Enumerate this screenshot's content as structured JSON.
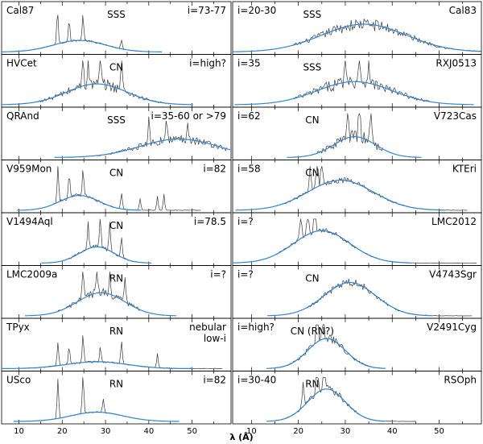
{
  "figure": {
    "xlabel": "λ (Å)",
    "colors": {
      "observed": "#3a3a3a",
      "model": "#2f86d0",
      "frame": "#000000"
    }
  },
  "chart_data": {
    "type": "line",
    "xlabel": "λ (Å)",
    "xlim": [
      6,
      59
    ],
    "xticks": [
      10,
      20,
      30,
      40,
      50
    ],
    "grid": false,
    "panels": [
      {
        "name": "Cal87",
        "class": "SSS",
        "incl": "i=73-77",
        "col": 0,
        "row": 0,
        "model": {
          "center": 24,
          "width": 6,
          "amp": 0.25
        },
        "obs_range": [
          9,
          38
        ],
        "lines": [
          [
            18.9,
            0.72
          ],
          [
            21.6,
            0.45
          ],
          [
            24.8,
            0.55
          ],
          [
            33.7,
            0.2
          ]
        ],
        "noise": 0.08
      },
      {
        "name": "Cal83",
        "class": "SSS",
        "incl": "i=20-30",
        "col": 1,
        "row": 0,
        "model": {
          "center": 34,
          "width": 9,
          "amp": 0.6
        },
        "obs_range": [
          19,
          59
        ],
        "lines": [],
        "noise": 0.22
      },
      {
        "name": "HVCet",
        "class": "CN",
        "incl": "i=high?",
        "col": 0,
        "row": 1,
        "model": {
          "center": 28,
          "width": 7,
          "amp": 0.45
        },
        "obs_range": [
          14,
          44
        ],
        "lines": [
          [
            24.8,
            0.8
          ],
          [
            28.8,
            0.6
          ],
          [
            33.7,
            0.7
          ],
          [
            26.0,
            0.5
          ]
        ],
        "noise": 0.3
      },
      {
        "name": "RXJ0513",
        "class": "SSS",
        "incl": "i=35",
        "col": 1,
        "row": 1,
        "model": {
          "center": 32,
          "width": 8,
          "amp": 0.5
        },
        "obs_range": [
          19,
          48
        ],
        "lines": [
          [
            30.0,
            0.85
          ],
          [
            33.0,
            0.75
          ],
          [
            35.0,
            0.6
          ]
        ],
        "noise": 0.3
      },
      {
        "name": "QRAnd",
        "class": "SSS",
        "incl": "i=35-60 or >79",
        "col": 0,
        "row": 2,
        "model": {
          "center": 47,
          "width": 9,
          "amp": 0.4
        },
        "obs_range": [
          28,
          58
        ],
        "lines": [
          [
            40.0,
            0.55
          ],
          [
            44.0,
            0.5
          ],
          [
            49.0,
            0.45
          ]
        ],
        "noise": 0.25
      },
      {
        "name": "V723Cas",
        "class": "CN",
        "incl": "i=62",
        "col": 1,
        "row": 2,
        "model": {
          "center": 32,
          "width": 4.5,
          "amp": 0.45
        },
        "obs_range": [
          24,
          38
        ],
        "lines": [
          [
            30.5,
            0.7
          ],
          [
            33.0,
            0.85
          ],
          [
            35.5,
            0.8
          ]
        ],
        "noise": 0.35
      },
      {
        "name": "V959Mon",
        "class": "CN",
        "incl": "i=82",
        "col": 0,
        "row": 3,
        "model": {
          "center": 24,
          "width": 4.5,
          "amp": 0.32
        },
        "obs_range": [
          18,
          52
        ],
        "lines": [
          [
            19.0,
            0.8
          ],
          [
            21.6,
            0.5
          ],
          [
            24.8,
            0.6
          ],
          [
            33.7,
            0.35
          ],
          [
            38.0,
            0.25
          ],
          [
            42.0,
            0.3
          ],
          [
            43.5,
            0.35
          ]
        ],
        "noise": 0.15
      },
      {
        "name": "KTEri",
        "class": "CN",
        "incl": "i=58",
        "col": 1,
        "row": 3,
        "model": {
          "center": 29,
          "width": 7,
          "amp": 0.65
        },
        "obs_range": [
          16,
          56
        ],
        "lines": [
          [
            22.5,
            0.6
          ],
          [
            25.0,
            0.7
          ],
          [
            24.0,
            0.75
          ]
        ],
        "noise": 0.1
      },
      {
        "name": "V1494Aql",
        "class": "CN",
        "incl": "i=78.5",
        "col": 0,
        "row": 4,
        "model": {
          "center": 28,
          "width": 4,
          "amp": 0.35
        },
        "obs_range": [
          21,
          37
        ],
        "lines": [
          [
            26.0,
            0.55
          ],
          [
            28.8,
            0.7
          ],
          [
            31.0,
            0.65
          ],
          [
            33.7,
            0.45
          ]
        ],
        "noise": 0.15
      },
      {
        "name": "LMC2012",
        "class": "",
        "incl": "i=?",
        "col": 1,
        "row": 4,
        "model": {
          "center": 25,
          "width": 6,
          "amp": 0.7
        },
        "obs_range": [
          11,
          58
        ],
        "lines": [
          [
            22.0,
            0.7
          ],
          [
            23.5,
            0.75
          ],
          [
            20.5,
            0.6
          ]
        ],
        "noise": 0.08
      },
      {
        "name": "LMC2009a",
        "class": "RN",
        "incl": "i=?",
        "col": 0,
        "row": 5,
        "model": {
          "center": 29,
          "width": 5.5,
          "amp": 0.5
        },
        "obs_range": [
          19,
          38
        ],
        "lines": [
          [
            24.8,
            0.75
          ],
          [
            28.0,
            0.62
          ],
          [
            31.0,
            0.6
          ],
          [
            34.5,
            0.55
          ]
        ],
        "noise": 0.2
      },
      {
        "name": "V4743Sgr",
        "class": "CN",
        "incl": "i=?",
        "col": 1,
        "row": 5,
        "model": {
          "center": 31,
          "width": 5.5,
          "amp": 0.72
        },
        "obs_range": [
          22,
          57
        ],
        "lines": [],
        "noise": 0.12
      },
      {
        "name": "TPyx",
        "class": "RN",
        "incl": "nebular low-i",
        "col": 0,
        "row": 6,
        "model": {
          "center": 28,
          "width": 7,
          "amp": 0.15
        },
        "obs_range": [
          10,
          57
        ],
        "lines": [
          [
            19.0,
            0.5
          ],
          [
            21.6,
            0.4
          ],
          [
            24.8,
            0.6
          ],
          [
            28.8,
            0.3
          ],
          [
            33.7,
            0.5
          ],
          [
            42.0,
            0.3
          ]
        ],
        "noise": 0.15
      },
      {
        "name": "V2491Cyg",
        "class": "CN (RN?)",
        "incl": "i=high?",
        "col": 1,
        "row": 6,
        "model": {
          "center": 26,
          "width": 4,
          "amp": 0.65
        },
        "obs_range": [
          15,
          38
        ],
        "lines": [
          [
            24.0,
            0.8
          ],
          [
            25.3,
            0.85
          ]
        ],
        "noise": 0.15
      },
      {
        "name": "USco",
        "class": "RN",
        "incl": "i=82",
        "col": 0,
        "row": 7,
        "model": {
          "center": 28,
          "width": 6,
          "amp": 0.2
        },
        "obs_range": [
          9,
          38
        ],
        "lines": [
          [
            19.0,
            0.85
          ],
          [
            24.8,
            0.9
          ],
          [
            29.5,
            0.3
          ]
        ],
        "noise": 0.06
      },
      {
        "name": "RSOph",
        "class": "RN",
        "incl": "i=30-40",
        "col": 1,
        "row": 7,
        "model": {
          "center": 26,
          "width": 4,
          "amp": 0.7
        },
        "obs_range": [
          15,
          45
        ],
        "lines": [
          [
            24.0,
            0.9
          ],
          [
            25.5,
            0.85
          ],
          [
            21.0,
            0.55
          ]
        ],
        "noise": 0.12
      }
    ]
  }
}
